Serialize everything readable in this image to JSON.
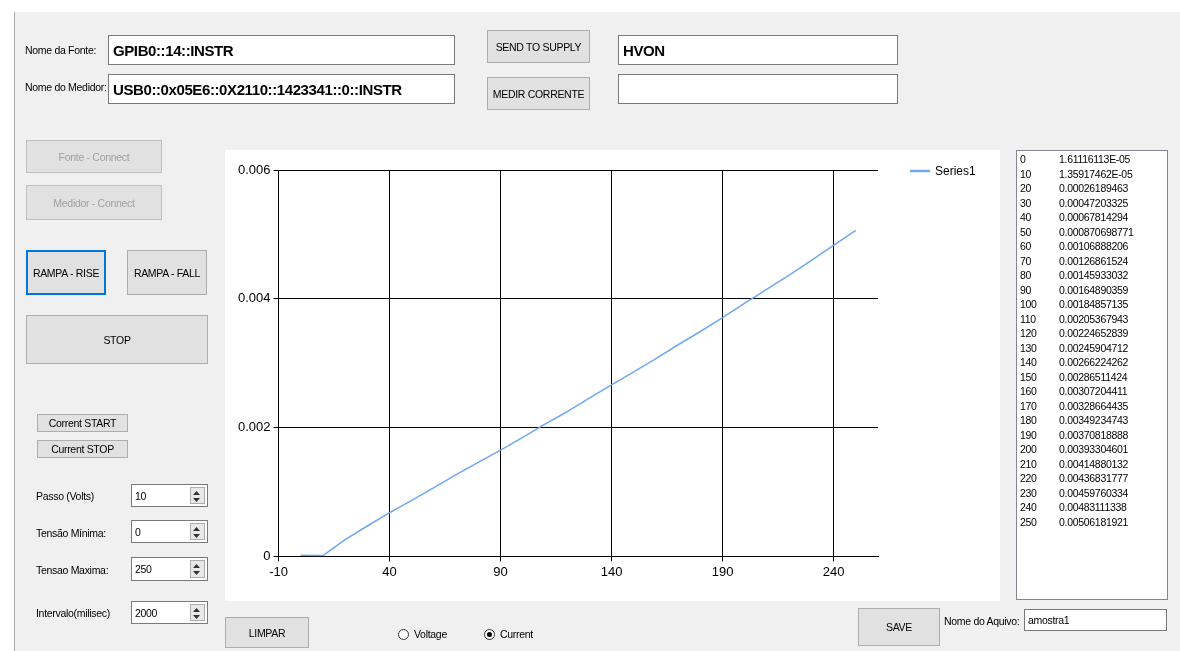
{
  "chart_data": {
    "type": "line",
    "x": [
      0,
      10,
      20,
      30,
      40,
      50,
      60,
      70,
      80,
      90,
      100,
      110,
      120,
      130,
      140,
      150,
      160,
      170,
      180,
      190,
      200,
      210,
      220,
      230,
      240,
      250
    ],
    "series": [
      {
        "name": "Series1",
        "color": "#6fa8f0",
        "values": [
          1.61116113e-05,
          1.35917462e-05,
          0.00026189463,
          0.00047203325,
          0.00067814294,
          0.000870698771,
          0.00106888206,
          0.00126861524,
          0.00145933032,
          0.00164890359,
          0.00184857135,
          0.00205367943,
          0.00224652839,
          0.00245904712,
          0.00266224262,
          0.00286511424,
          0.00307204411,
          0.00328664435,
          0.00349234743,
          0.00370818888,
          0.00393304601,
          0.00414880132,
          0.00436831777,
          0.00459760334,
          0.00483111338,
          0.00506181921
        ]
      }
    ],
    "xlim": [
      -10,
      260
    ],
    "xticks": [
      -10,
      40,
      90,
      140,
      190,
      240
    ],
    "ylim": [
      0,
      0.006
    ],
    "yticks": [
      0,
      0.002,
      0.004,
      0.006
    ],
    "grid": true,
    "legend": "top right",
    "annotations": [
      "Nome da Fonte:",
      "GPIB0::14::INSTR",
      "Nome do Medidor:",
      "USB0::0x05E6::0X2110::1423341::0::INSTR",
      "SEND TO SUPPLY",
      "MEDIR CORRENTE",
      "HVON",
      "Fonte - Connect",
      "Medidor - Connect",
      "RAMPA - RISE",
      "RAMPA - FALL",
      "STOP",
      "Corrent START",
      "Current STOP",
      "Passo (Volts)",
      "10",
      "Tensão Mínima:",
      "0",
      "Tensao Maxima:",
      "250",
      "Intervalo(milisec)",
      "2000",
      "LIMPAR",
      "Voltage",
      "Current",
      "SAVE",
      "Nome do Aquivo:",
      "amostra1",
      "0",
      "1.61116113E-05",
      "10",
      "1.35917462E-05",
      "20",
      "0.00026189463",
      "30",
      "0.00047203325",
      "40",
      "0.00067814294",
      "50",
      "0.000870698771",
      "60",
      "0.00106888206",
      "70",
      "0.00126861524",
      "80",
      "0.00145933032",
      "90",
      "0.00164890359",
      "100",
      "0.00184857135",
      "110",
      "0.00205367943",
      "120",
      "0.00224652839",
      "130",
      "0.00245904712",
      "140",
      "0.00266224262",
      "150",
      "0.00286511424",
      "160",
      "0.00307204411",
      "170",
      "0.00328664435",
      "180",
      "0.00349234743",
      "190",
      "0.00370818888",
      "200",
      "0.00393304601",
      "210",
      "0.00414880132",
      "220",
      "0.00436831777",
      "230",
      "0.00459760334",
      "240",
      "0.00483111338",
      "250",
      "0.00506181921"
    ]
  }
}
